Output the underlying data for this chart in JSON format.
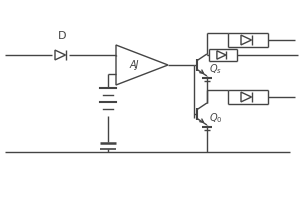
{
  "bg_color": "#ffffff",
  "line_color": "#444444",
  "lw": 1.0,
  "figsize": [
    3.0,
    2.0
  ],
  "dpi": 100,
  "D_label": "D",
  "AJ_label": "AJ",
  "Q1_label": "Qₛ",
  "Q2_label": "Q₀"
}
